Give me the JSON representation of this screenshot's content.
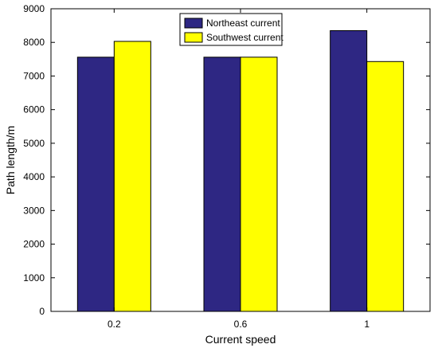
{
  "chart_data": {
    "type": "bar",
    "title": "",
    "xlabel": "Current speed",
    "ylabel": "Path length/m",
    "categories": [
      "0.2",
      "0.6",
      "1"
    ],
    "series": [
      {
        "name": "Northeast current",
        "values": [
          7560,
          7560,
          8350
        ],
        "color": "#2e2783"
      },
      {
        "name": "Southwest current",
        "values": [
          8030,
          7560,
          7430
        ],
        "color": "#ffff00"
      }
    ],
    "ylim": [
      0,
      9000
    ],
    "yticks": [
      0,
      1000,
      2000,
      3000,
      4000,
      5000,
      6000,
      7000,
      8000,
      9000
    ],
    "grid": false,
    "legend_position": "top-center"
  }
}
